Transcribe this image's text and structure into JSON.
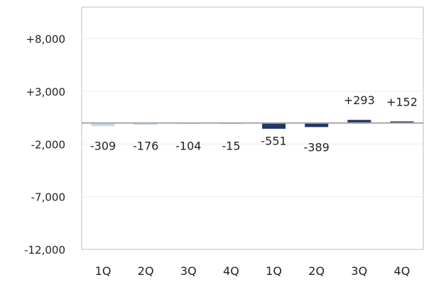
{
  "chart_data": {
    "type": "bar",
    "title": "",
    "xlabel": "",
    "ylabel": "",
    "ylim": [
      -12000,
      11000
    ],
    "yticks": [
      -12000,
      -7000,
      -2000,
      3000,
      8000
    ],
    "ytick_labels": [
      "-12,000",
      "-7,000",
      "-2,000",
      "+3,000",
      "+8,000"
    ],
    "grid": true,
    "legend": "none",
    "categories": [
      "1Q",
      "2Q",
      "3Q",
      "4Q",
      "1Q",
      "2Q",
      "3Q",
      "4Q"
    ],
    "values": [
      -309,
      -176,
      -104,
      -15,
      -551,
      -389,
      293,
      152
    ],
    "data_labels": [
      "-309",
      "-176",
      "-104",
      "-15",
      "-551",
      "-389",
      "+293",
      "+152"
    ],
    "bar_colors": [
      "#c9dbea",
      "#c9dbea",
      "#c9dbea",
      "#c9dbea",
      "#1f3864",
      "#1f3864",
      "#1f3864",
      "#1f3864"
    ]
  }
}
